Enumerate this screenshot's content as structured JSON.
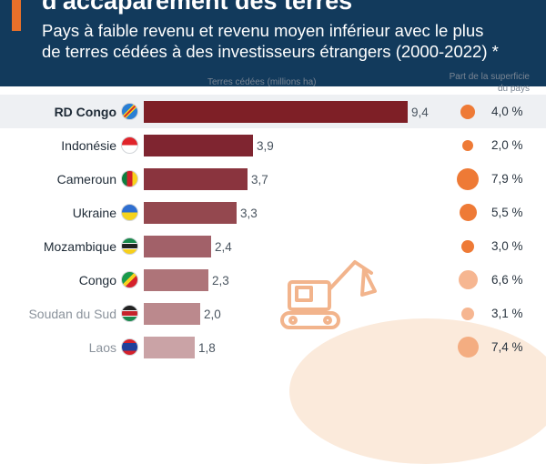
{
  "title_cut": "d'accaparement des terres",
  "subtitle_line1": "Pays à faible revenu et revenu moyen inférieur avec le plus",
  "subtitle_line2": "de terres cédées à des investisseurs étrangers (2000-2022) *",
  "bars_header": "Terres cédées (millions ha)",
  "share_header_line1": "Part de la superficie",
  "share_header_line2": "du pays",
  "colors": {
    "header_bg": "#123a5c",
    "accent": "#e8702a",
    "bar_dark": "#7e1f26",
    "dot": "#ee7a36"
  },
  "chart_data": {
    "type": "bar",
    "orientation": "horizontal",
    "title": "Pays à faible revenu et revenu moyen inférieur avec le plus de terres cédées à des investisseurs étrangers (2000-2022) *",
    "xlabel": "Terres cédées (millions ha)",
    "categories": [
      "RD Congo",
      "Indonésie",
      "Cameroun",
      "Ukraine",
      "Mozambique",
      "Congo",
      "Soudan du Sud",
      "Laos"
    ],
    "values": [
      9.4,
      3.9,
      3.7,
      3.3,
      2.4,
      2.3,
      2.0,
      1.8
    ],
    "value_labels": [
      "9,4",
      "3,9",
      "3,7",
      "3,3",
      "2,4",
      "2,3",
      "2,0",
      "1,8"
    ],
    "share_of_area_pct": [
      4.0,
      2.0,
      7.9,
      5.5,
      3.0,
      6.6,
      3.1,
      7.4
    ],
    "share_labels": [
      "4,0 %",
      "2,0 %",
      "7,9 %",
      "5,5 %",
      "3,0 %",
      "6,6 %",
      "3,1 %",
      "7,4 %"
    ],
    "share_title": "Part de la superficie du pays",
    "xlim": [
      0,
      9.4
    ]
  }
}
